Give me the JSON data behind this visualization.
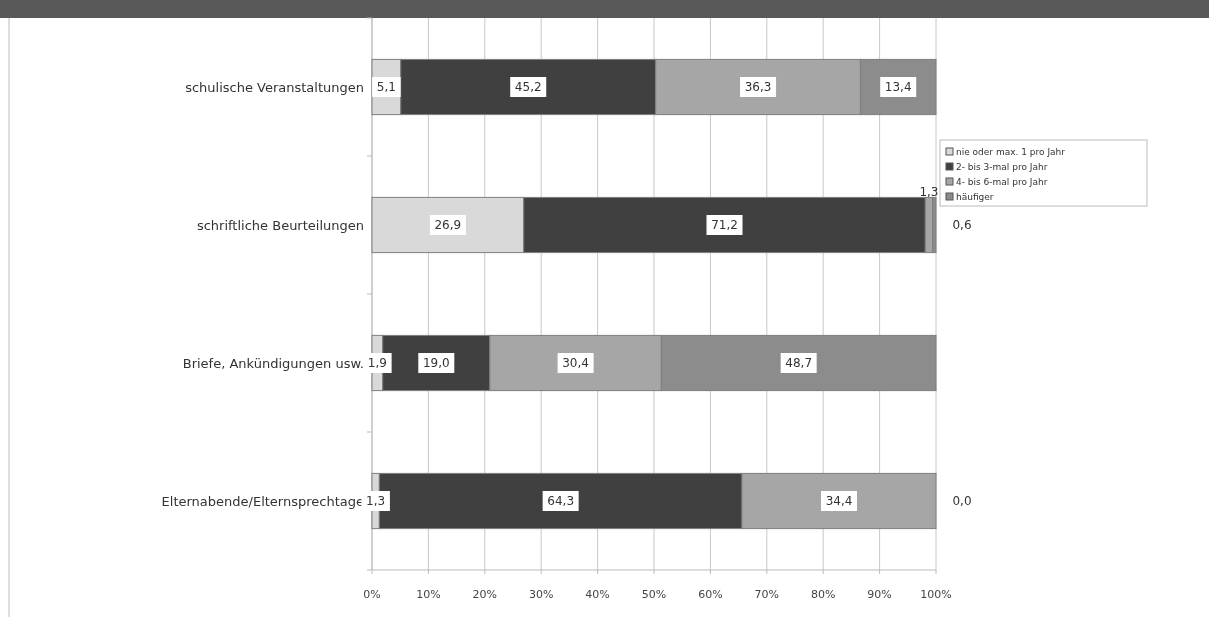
{
  "chart_data": {
    "type": "bar",
    "orientation": "horizontal",
    "stacked": true,
    "categories": [
      "schulische Veranstaltungen",
      "schriftliche Beurteilungen",
      "Briefe, Ankündigungen usw.",
      "Elternabende/Elternsprechtage"
    ],
    "series": [
      {
        "name": "nie oder max. 1 pro Jahr",
        "color": "#d9d9d9",
        "values": [
          5.1,
          26.9,
          1.9,
          1.3
        ],
        "value_labels": [
          "5,1",
          "26,9",
          "1,9",
          "1,3"
        ]
      },
      {
        "name": "2- bis 3-mal pro Jahr",
        "color": "#404040",
        "values": [
          45.2,
          71.2,
          19.0,
          64.3
        ],
        "value_labels": [
          "45,2",
          "71,2",
          "19,0",
          "64,3"
        ]
      },
      {
        "name": "4- bis 6-mal pro Jahr",
        "color": "#a6a6a6",
        "values": [
          36.3,
          1.3,
          30.4,
          34.4
        ],
        "value_labels": [
          "36,3",
          "1,3",
          "30,4",
          "34,4"
        ]
      },
      {
        "name": "häufiger",
        "color": "#8c8c8c",
        "values": [
          13.4,
          0.6,
          48.7,
          0.0
        ],
        "value_labels": [
          "13,4",
          "0,6",
          "48,7",
          "0,0"
        ]
      }
    ],
    "xlim": [
      0,
      100
    ],
    "xticks": [
      {
        "value": 0,
        "label": "0%"
      },
      {
        "value": 10,
        "label": "10%"
      },
      {
        "value": 20,
        "label": "20%"
      },
      {
        "value": 30,
        "label": "30%"
      },
      {
        "value": 40,
        "label": "40%"
      },
      {
        "value": 50,
        "label": "50%"
      },
      {
        "value": 60,
        "label": "60%"
      },
      {
        "value": 70,
        "label": "70%"
      },
      {
        "value": 80,
        "label": "80%"
      },
      {
        "value": 90,
        "label": "90%"
      },
      {
        "value": 100,
        "label": "100%"
      }
    ],
    "grid": "x",
    "legend": "top right"
  }
}
